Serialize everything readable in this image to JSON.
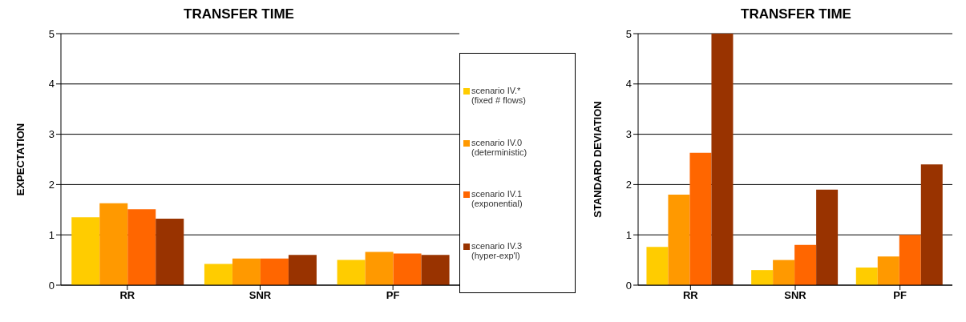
{
  "chart_data": [
    {
      "type": "bar",
      "title": "TRANSFER TIME",
      "ylabel": "EXPECTATION",
      "categories": [
        "RR",
        "SNR",
        "PF"
      ],
      "ylim": [
        0,
        5
      ],
      "yticks": [
        0,
        1,
        2,
        3,
        4,
        5
      ],
      "grid": "y",
      "legend": "right",
      "series": [
        {
          "name": "scenario IV.*\n(fixed # flows)",
          "color": "#ffcc00",
          "values": [
            1.35,
            0.42,
            0.5
          ]
        },
        {
          "name": "scenario IV.0\n(deterministic)",
          "color": "#ff9900",
          "values": [
            1.63,
            0.53,
            0.66
          ]
        },
        {
          "name": "scenario IV.1\n(exponential)",
          "color": "#ff6600",
          "values": [
            1.51,
            0.53,
            0.63
          ]
        },
        {
          "name": "scenario IV.3\n(hyper-exp'l)",
          "color": "#993300",
          "values": [
            1.32,
            0.6,
            0.6
          ]
        }
      ]
    },
    {
      "type": "bar",
      "title": "TRANSFER TIME",
      "ylabel": "STANDARD DEVIATION",
      "categories": [
        "RR",
        "SNR",
        "PF"
      ],
      "ylim": [
        0,
        5
      ],
      "yticks": [
        0,
        1,
        2,
        3,
        4,
        5
      ],
      "grid": "y",
      "series": [
        {
          "color": "#ffcc00",
          "values": [
            0.76,
            0.3,
            0.35
          ]
        },
        {
          "color": "#ff9900",
          "values": [
            1.8,
            0.5,
            0.57
          ]
        },
        {
          "color": "#ff6600",
          "values": [
            2.63,
            0.8,
            1.0
          ]
        },
        {
          "color": "#993300",
          "values": [
            5.0,
            1.9,
            2.4
          ]
        }
      ]
    }
  ]
}
